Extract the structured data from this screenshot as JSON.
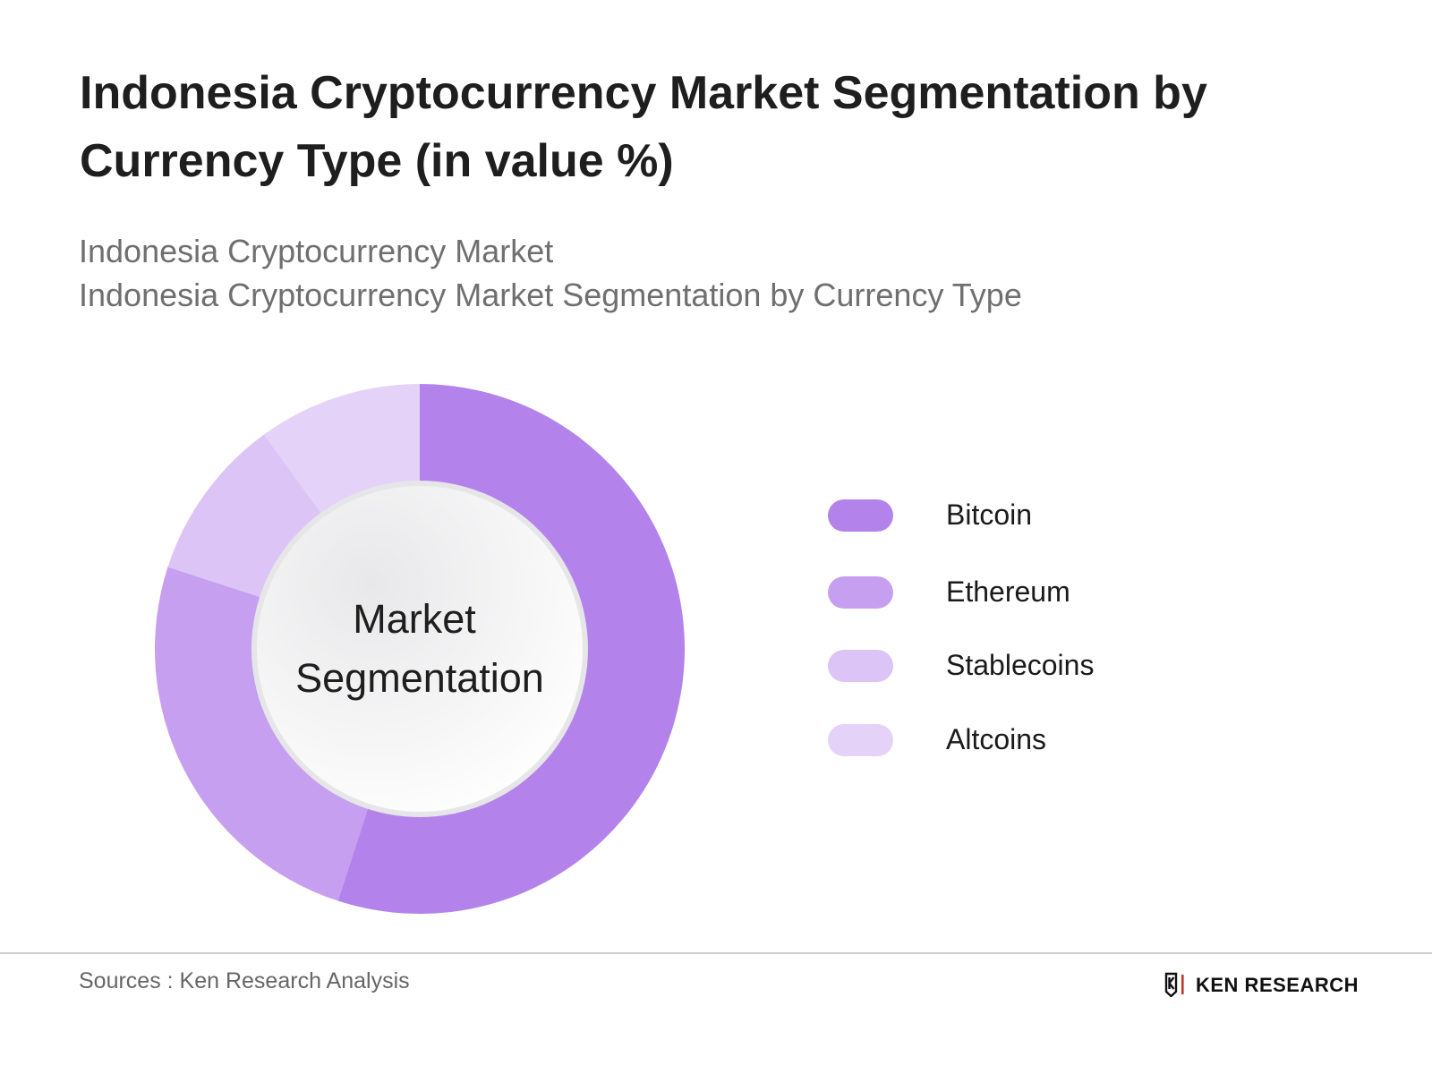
{
  "title": "Indonesia Cryptocurrency Market Segmentation by Currency Type (in value %)",
  "subtitle_lines": [
    "Indonesia Cryptocurrency Market",
    "Indonesia Cryptocurrency Market Segmentation by Currency Type"
  ],
  "chart_data": {
    "type": "pie",
    "center_label_lines": [
      "Market",
      "Segmentation"
    ],
    "categories": [
      "Bitcoin",
      "Ethereum",
      "Stablecoins",
      "Altcoins"
    ],
    "values": [
      55,
      25,
      10,
      10
    ],
    "colors": [
      "#b383eb",
      "#c69ff0",
      "#dcc4f7",
      "#e5d2f8"
    ],
    "legend_position": "right"
  },
  "footer": {
    "sources": "Sources : Ken Research Analysis",
    "logo_text": "KEN RESEARCH"
  }
}
